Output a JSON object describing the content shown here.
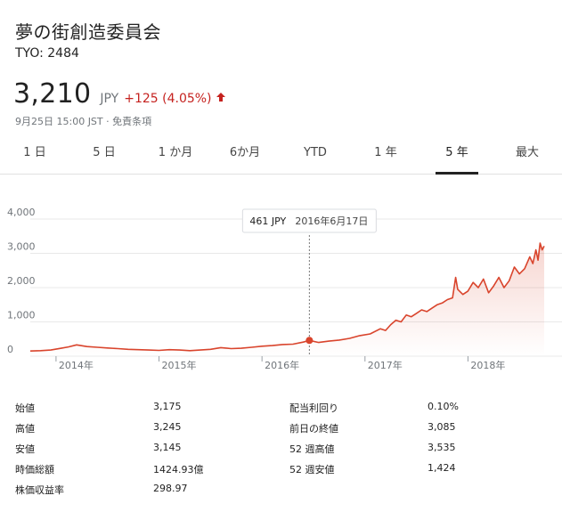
{
  "header": {
    "company": "夢の街創造委員会",
    "ticker": "TYO: 2484",
    "price": "3,210",
    "currency": "JPY",
    "change": "+125 (4.05%)",
    "timestamp": "9月25日 15:00 JST · 免責条項"
  },
  "tabs": [
    {
      "label": "1 日"
    },
    {
      "label": "5 日"
    },
    {
      "label": "1 か月"
    },
    {
      "label": "6か月"
    },
    {
      "label": "YTD"
    },
    {
      "label": "1 年"
    },
    {
      "label": "5 年",
      "active": true
    },
    {
      "label": "最大"
    }
  ],
  "tooltip": {
    "price": "461 JPY",
    "date": "2016年6月17日"
  },
  "stats": {
    "left": [
      {
        "label": "始値",
        "value": "3,175"
      },
      {
        "label": "高値",
        "value": "3,245"
      },
      {
        "label": "安値",
        "value": "3,145"
      },
      {
        "label": "時価総額",
        "value": "1424.93億"
      },
      {
        "label": "株価収益率",
        "value": "298.97"
      }
    ],
    "right": [
      {
        "label": "配当利回り",
        "value": "0.10%"
      },
      {
        "label": "前日の終値",
        "value": "3,085"
      },
      {
        "label": "52 週高値",
        "value": "3,535"
      },
      {
        "label": "52 週安値",
        "value": "1,424"
      }
    ]
  },
  "colors": {
    "line": "#d9442c",
    "up": "#c5221f",
    "grid": "#e8e8e8",
    "axis_text": "#70757a"
  },
  "chart_data": {
    "type": "area",
    "ylim": [
      0,
      4000
    ],
    "yticks": [
      0,
      1000,
      2000,
      3000,
      4000
    ],
    "ytick_labels": [
      "0",
      "1,000",
      "2,000",
      "3,000",
      "4,000"
    ],
    "xticks": [
      2014,
      2015,
      2016,
      2017,
      2018
    ],
    "xtick_labels": [
      "2014年",
      "2015年",
      "2016年",
      "2017年",
      "2018年"
    ],
    "xlim": [
      2013.75,
      2018.74
    ],
    "highlight": {
      "x": 2016.46,
      "y": 461
    },
    "series": [
      {
        "x": [
          2013.75,
          2013.85,
          2013.95,
          2014.05,
          2014.12,
          2014.2,
          2014.3,
          2014.4,
          2014.5,
          2014.6,
          2014.7,
          2014.8,
          2014.9,
          2015.0,
          2015.1,
          2015.2,
          2015.3,
          2015.4,
          2015.5,
          2015.6,
          2015.7,
          2015.8,
          2015.9,
          2016.0,
          2016.1,
          2016.2,
          2016.3,
          2016.4,
          2016.46,
          2016.55,
          2016.65,
          2016.75,
          2016.85,
          2016.95,
          2017.05,
          2017.15,
          2017.2,
          2017.25,
          2017.3,
          2017.35,
          2017.4,
          2017.45,
          2017.5,
          2017.55,
          2017.6,
          2017.65,
          2017.7,
          2017.75,
          2017.8,
          2017.85,
          2017.88,
          2017.9,
          2017.95,
          2018.0,
          2018.05,
          2018.1,
          2018.15,
          2018.2,
          2018.25,
          2018.3,
          2018.35,
          2018.4,
          2018.45,
          2018.5,
          2018.55,
          2018.6,
          2018.63,
          2018.66,
          2018.68,
          2018.7,
          2018.72,
          2018.74
        ],
        "values": [
          150,
          160,
          180,
          230,
          270,
          330,
          280,
          260,
          240,
          220,
          200,
          190,
          180,
          170,
          190,
          180,
          160,
          180,
          200,
          250,
          220,
          230,
          260,
          290,
          310,
          340,
          350,
          410,
          461,
          400,
          440,
          470,
          520,
          600,
          650,
          800,
          750,
          920,
          1050,
          1000,
          1200,
          1150,
          1250,
          1350,
          1300,
          1400,
          1500,
          1550,
          1650,
          1700,
          2300,
          1950,
          1800,
          1900,
          2150,
          2000,
          2250,
          1850,
          2050,
          2300,
          2000,
          2200,
          2600,
          2400,
          2550,
          2900,
          2700,
          3100,
          2800,
          3300,
          3100,
          3210
        ]
      }
    ]
  }
}
